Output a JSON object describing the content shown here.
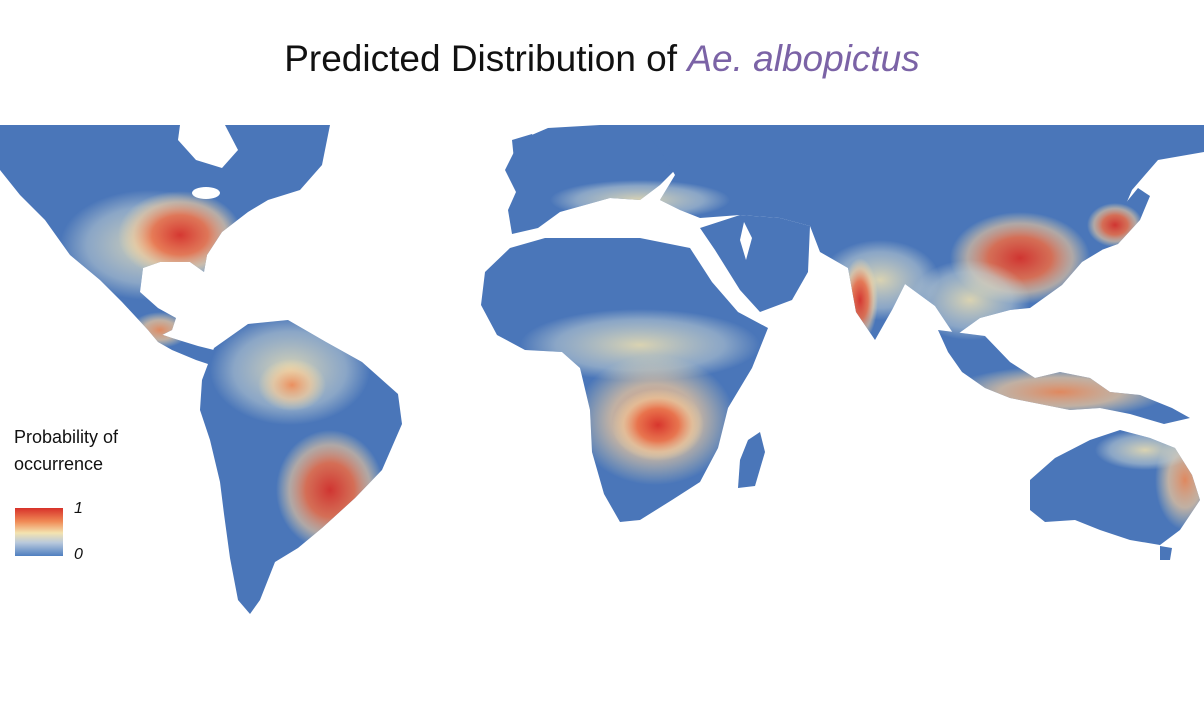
{
  "title": {
    "prefix": "Predicted Distribution of",
    "species": "Ae. albopictus"
  },
  "legend": {
    "title_line1": "Probability of",
    "title_line2": "occurrence",
    "max_label": "1",
    "min_label": "0"
  },
  "colors": {
    "low": "#4a76b9",
    "mid": "#f3e3b0",
    "high": "#d7312a",
    "species_text": "#7b63a6"
  }
}
